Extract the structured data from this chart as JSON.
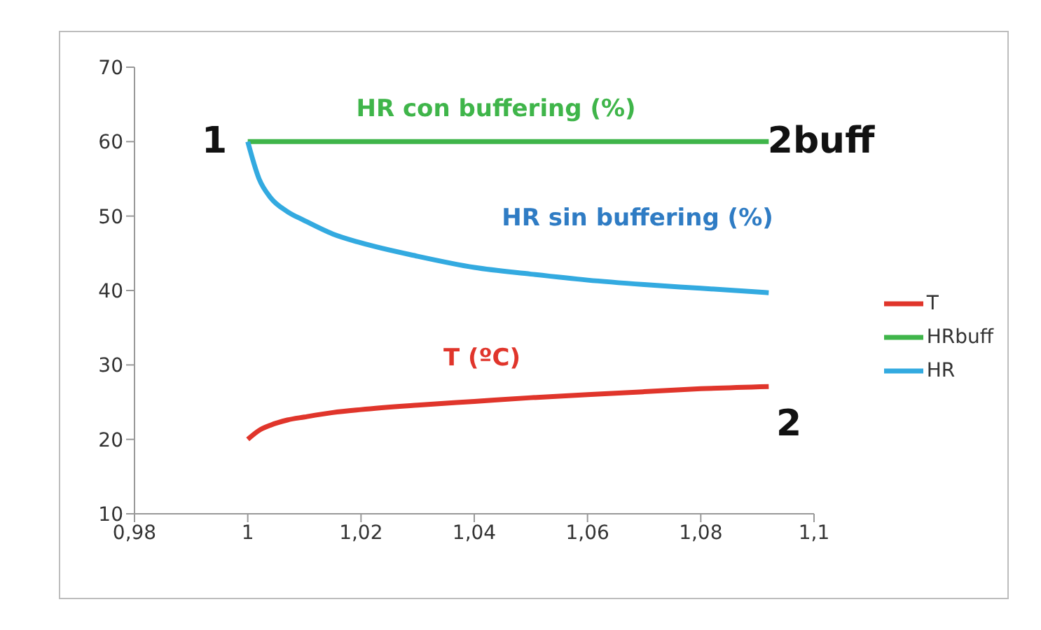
{
  "chart_data": {
    "type": "line",
    "xlim": [
      0.98,
      1.1
    ],
    "xticks": [
      {
        "value": 0.98,
        "label": "0,98"
      },
      {
        "value": 1,
        "label": "1"
      },
      {
        "value": 1.02,
        "label": "1,02"
      },
      {
        "value": 1.04,
        "label": "1,04"
      },
      {
        "value": 1.06,
        "label": "1,06"
      },
      {
        "value": 1.08,
        "label": "1,08"
      },
      {
        "value": 1.1,
        "label": "1,1"
      }
    ],
    "ylim": [
      10,
      70
    ],
    "yticks": [
      10,
      20,
      30,
      40,
      50,
      60,
      70
    ],
    "grid": false,
    "legend": "right",
    "marker": "none",
    "line_style": "solid",
    "series": [
      {
        "name": "T",
        "color": "#e0352b",
        "x": [
          1,
          1.002,
          1.004,
          1.007,
          1.01,
          1.015,
          1.02,
          1.03,
          1.04,
          1.05,
          1.06,
          1.07,
          1.08,
          1.092
        ],
        "values": [
          20,
          21.2,
          21.9,
          22.6,
          23,
          23.6,
          24,
          24.6,
          25.1,
          25.6,
          26,
          26.4,
          26.8,
          27.1
        ]
      },
      {
        "name": "HRbuff",
        "color": "#3fb54a",
        "x": [
          1,
          1.092
        ],
        "values": [
          60,
          60
        ]
      },
      {
        "name": "HR",
        "color": "#33aae0",
        "x": [
          1,
          1.002,
          1.004,
          1.007,
          1.01,
          1.015,
          1.02,
          1.03,
          1.04,
          1.05,
          1.06,
          1.07,
          1.08,
          1.092
        ],
        "values": [
          60,
          55,
          52.5,
          50.6,
          49.4,
          47.6,
          46.4,
          44.6,
          43.1,
          42.2,
          41.4,
          40.8,
          40.3,
          39.7
        ]
      }
    ],
    "annotations": [
      "1",
      "2buff",
      "2",
      "HR con buffering (%)",
      "HR sin buffering (%)",
      "T (ºC)"
    ]
  }
}
